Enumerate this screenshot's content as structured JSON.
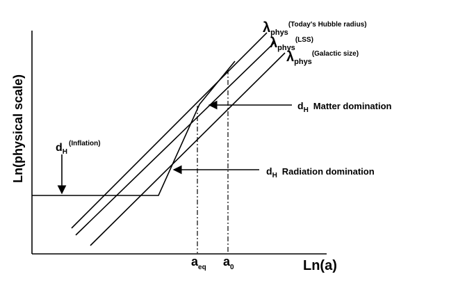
{
  "axes": {
    "y_label": "Ln(physical scale)",
    "x_label": "Ln(a)"
  },
  "lines": {
    "hubble": {
      "symbol": "λ",
      "sub": "phys",
      "sup": "(Today's Hubble radius)"
    },
    "lss": {
      "symbol": "λ",
      "sub": "phys",
      "sup": "(LSS)"
    },
    "galactic": {
      "symbol": "λ",
      "sub": "phys",
      "sup": "(Galactic size)"
    }
  },
  "annotations": {
    "matter": {
      "main": "d",
      "sub": "H",
      "text": "Matter domination"
    },
    "radiation": {
      "main": "d",
      "sub": "H",
      "text": "Radiation domination"
    },
    "inflation": {
      "main": "d",
      "sub": "H",
      "sup": "(Inflation)"
    }
  },
  "ticks": {
    "a_eq": {
      "main": "a",
      "sub": "eq"
    },
    "a_0": {
      "main": "a",
      "sub": "0"
    }
  }
}
